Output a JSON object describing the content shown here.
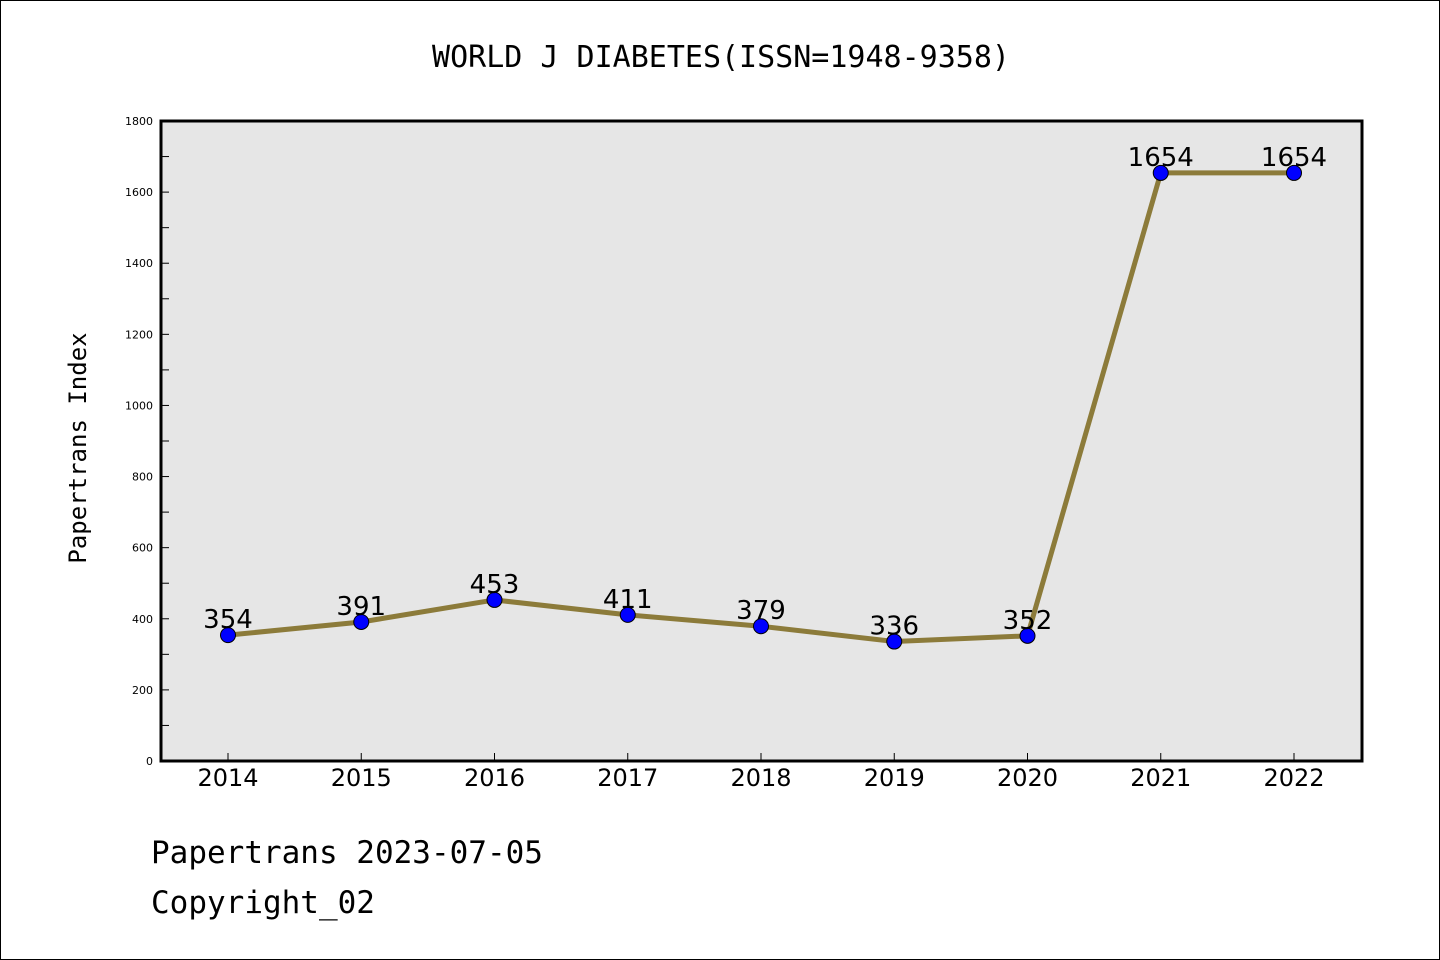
{
  "chart_data": {
    "type": "line",
    "title": "WORLD J DIABETES(ISSN=1948-9358)",
    "xlabel": "",
    "ylabel": "Papertrans Index",
    "categories": [
      "2014",
      "2015",
      "2016",
      "2017",
      "2018",
      "2019",
      "2020",
      "2021",
      "2022"
    ],
    "values": [
      354,
      391,
      453,
      411,
      379,
      336,
      352,
      1654,
      1654
    ],
    "data_labels": [
      "354",
      "391",
      "453",
      "411",
      "379",
      "336",
      "352",
      "1654",
      "1654"
    ],
    "ylim": [
      0,
      1800
    ],
    "yticks": [
      "0",
      "200",
      "400",
      "600",
      "800",
      "1000",
      "1200",
      "1400",
      "1600",
      "1800"
    ],
    "grid": false,
    "plot_background": "#e6e6e6",
    "line_color": "#8c7b3a",
    "marker_color": "#0000ff"
  },
  "footer": {
    "date_line": "Papertrans 2023-07-05",
    "copyright_line": "Copyright_02"
  }
}
